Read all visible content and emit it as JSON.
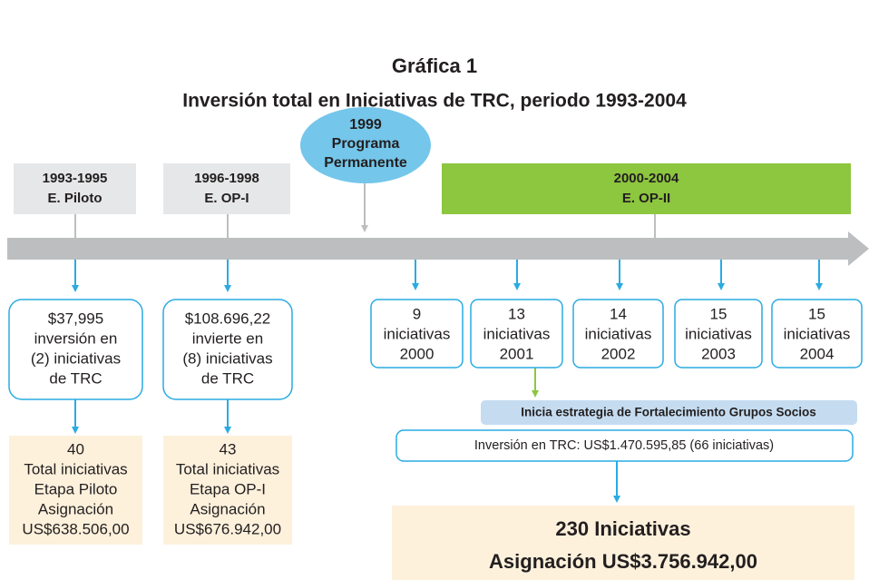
{
  "title": [
    "Gráfica 1",
    "Inversión total en Iniciativas de TRC, periodo 1993-2004"
  ],
  "milestone": [
    "1999",
    "Programa",
    "Permanente"
  ],
  "phases": [
    [
      "1993-1995",
      "E. Piloto"
    ],
    [
      "1996-1998",
      "E. OP-I"
    ],
    [
      "2000-2004",
      "E. OP-II"
    ]
  ],
  "investments": [
    [
      "$37,995",
      "inversión en",
      "(2) iniciativas",
      "de TRC"
    ],
    [
      "$108.696,22",
      "invierte en",
      "(8) iniciativas",
      "de TRC"
    ]
  ],
  "totals": [
    [
      "40",
      "Total iniciativas",
      "Etapa Piloto",
      "Asignación",
      "US$638.506,00"
    ],
    [
      "43",
      "Total iniciativas",
      "Etapa OP-I",
      "Asignación",
      "US$676.942,00"
    ]
  ],
  "years": [
    [
      "9",
      "iniciativas",
      "2000"
    ],
    [
      "13",
      "iniciativas",
      "2001"
    ],
    [
      "14",
      "iniciativas",
      "2002"
    ],
    [
      "15",
      "iniciativas",
      "2003"
    ],
    [
      "15",
      "iniciativas",
      "2004"
    ]
  ],
  "strategy": "Inicia estrategia de Fortalecimiento Grupos Socios",
  "investment_total": "Inversión en TRC: US$1.470.595,85 (66 iniciativas)",
  "summary": [
    "230 Iniciativas",
    "Asignación US$3.756.942,00"
  ]
}
